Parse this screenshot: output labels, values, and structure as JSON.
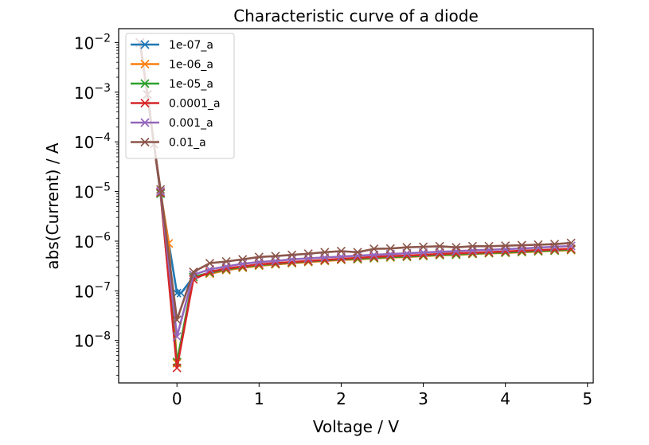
{
  "chart_data": {
    "type": "line",
    "title": "Characteristic curve of a diode",
    "xlabel": "Voltage / V",
    "ylabel": "abs(Current) / A",
    "xscale": "linear",
    "yscale": "log",
    "xlim": [
      -0.71,
      5.07
    ],
    "ylim": [
      1.4e-09,
      0.019
    ],
    "xticks": [
      0,
      1,
      2,
      3,
      4,
      5
    ],
    "xtick_labels": [
      "0",
      "1",
      "2",
      "3",
      "4",
      "5"
    ],
    "yticks": [
      1e-08,
      1e-07,
      1e-06,
      1e-05,
      0.0001,
      0.001,
      0.01
    ],
    "ytick_labels": [
      {
        "base": "10",
        "exp": "−8"
      },
      {
        "base": "10",
        "exp": "−7"
      },
      {
        "base": "10",
        "exp": "−6"
      },
      {
        "base": "10",
        "exp": "−5"
      },
      {
        "base": "10",
        "exp": "−4"
      },
      {
        "base": "10",
        "exp": "−3"
      },
      {
        "base": "10",
        "exp": "−2"
      }
    ],
    "grid": false,
    "legend_position": "top-left",
    "marker": "x",
    "forward_x": [
      0.2,
      0.4,
      0.6,
      0.8,
      1.0,
      1.2,
      1.4,
      1.6,
      1.8,
      2.0,
      2.2,
      2.4,
      2.6,
      2.8,
      3.0,
      3.2,
      3.4,
      3.6,
      3.8,
      4.0,
      4.2,
      4.4,
      4.6,
      4.8
    ],
    "series": [
      {
        "name": "1e-07_a",
        "color": "#1f77b4",
        "x": [
          -0.45,
          -0.36,
          -0.28,
          -0.2,
          0.0,
          0.05,
          0.2,
          0.4,
          0.6,
          0.8,
          1.0,
          1.2,
          1.4,
          1.6,
          1.8,
          2.0,
          2.2,
          2.4,
          2.6,
          2.8,
          3.0,
          3.2,
          3.4,
          3.6,
          3.8,
          4.0,
          4.2,
          4.4,
          4.6,
          4.8
        ],
        "y": [
          0.01,
          0.0009,
          9e-05,
          9.5e-06,
          9e-08,
          9e-08,
          1.9e-07,
          2.3e-07,
          2.7e-07,
          3e-07,
          3.3e-07,
          3.5e-07,
          3.7e-07,
          3.9e-07,
          4.1e-07,
          4.3e-07,
          4.4e-07,
          4.6e-07,
          4.8e-07,
          4.9e-07,
          5.1e-07,
          5.3e-07,
          5.4e-07,
          5.6e-07,
          5.8e-07,
          5.9e-07,
          6.1e-07,
          6.3e-07,
          6.5e-07,
          6.7e-07
        ]
      },
      {
        "name": "1e-06_a",
        "color": "#ff7f0e",
        "x": [
          -0.45,
          -0.36,
          -0.28,
          -0.2,
          -0.1,
          0.0,
          0.2,
          0.4,
          0.6,
          0.8,
          1.0,
          1.2,
          1.4,
          1.6,
          1.8,
          2.0,
          2.2,
          2.4,
          2.6,
          2.8,
          3.0,
          3.2,
          3.4,
          3.6,
          3.8,
          4.0,
          4.2,
          4.4,
          4.6,
          4.8
        ],
        "y": [
          0.01,
          0.0009,
          9e-05,
          9.5e-06,
          9e-07,
          3.5e-09,
          1.9e-07,
          2.2e-07,
          2.6e-07,
          2.9e-07,
          3.2e-07,
          3.4e-07,
          3.6e-07,
          3.8e-07,
          4e-07,
          4.2e-07,
          4.3e-07,
          4.5e-07,
          4.7e-07,
          4.8e-07,
          5e-07,
          5.2e-07,
          5.3e-07,
          5.5e-07,
          5.7e-07,
          5.8e-07,
          6e-07,
          6.2e-07,
          6.4e-07,
          6.6e-07
        ]
      },
      {
        "name": "1e-05_a",
        "color": "#2ca02c",
        "x": [
          -0.45,
          -0.36,
          -0.28,
          -0.2,
          0.0,
          0.2,
          0.4,
          0.6,
          0.8,
          1.0,
          1.2,
          1.4,
          1.6,
          1.8,
          2.0,
          2.2,
          2.4,
          2.6,
          2.8,
          3.0,
          3.2,
          3.4,
          3.6,
          3.8,
          4.0,
          4.2,
          4.4,
          4.6,
          4.8
        ],
        "y": [
          0.01,
          0.0009,
          9e-05,
          9e-06,
          3.7e-09,
          1.9e-07,
          2.3e-07,
          2.7e-07,
          3e-07,
          3.3e-07,
          3.5e-07,
          3.7e-07,
          3.9e-07,
          4.1e-07,
          4.3e-07,
          4.4e-07,
          4.6e-07,
          4.8e-07,
          4.9e-07,
          5.1e-07,
          5.3e-07,
          5.4e-07,
          5.6e-07,
          5.8e-07,
          5.9e-07,
          6.1e-07,
          6.3e-07,
          6.5e-07,
          6.8e-07
        ]
      },
      {
        "name": "0.0001_a",
        "color": "#d62728",
        "x": [
          -0.45,
          -0.36,
          -0.28,
          -0.2,
          0.0,
          0.2,
          0.4,
          0.6,
          0.8,
          1.0,
          1.2,
          1.4,
          1.6,
          1.8,
          2.0,
          2.2,
          2.4,
          2.6,
          2.8,
          3.0,
          3.2,
          3.4,
          3.6,
          3.8,
          4.0,
          4.2,
          4.4,
          4.6,
          4.8
        ],
        "y": [
          0.01,
          0.0009,
          9e-05,
          9.5e-06,
          2.8e-09,
          1.7e-07,
          2.4e-07,
          2.8e-07,
          3.1e-07,
          3.4e-07,
          3.6e-07,
          3.8e-07,
          4e-07,
          4.2e-07,
          4.4e-07,
          4.6e-07,
          4.8e-07,
          5e-07,
          5.1e-07,
          5.3e-07,
          5.5e-07,
          5.7e-07,
          5.8e-07,
          6e-07,
          6.2e-07,
          6.4e-07,
          6.6e-07,
          6.8e-07,
          7e-07
        ]
      },
      {
        "name": "0.001_a",
        "color": "#9467bd",
        "x": [
          -0.45,
          -0.36,
          -0.28,
          -0.2,
          0.0,
          0.2,
          0.4,
          0.6,
          0.8,
          1.0,
          1.2,
          1.4,
          1.6,
          1.8,
          2.0,
          2.2,
          2.4,
          2.6,
          2.8,
          3.0,
          3.2,
          3.4,
          3.6,
          3.8,
          4.0,
          4.2,
          4.4,
          4.6,
          4.8
        ],
        "y": [
          0.01,
          0.0009,
          9e-05,
          1e-05,
          1.2e-08,
          2.1e-07,
          2.7e-07,
          3.1e-07,
          3.5e-07,
          3.8e-07,
          4e-07,
          4.3e-07,
          4.5e-07,
          4.7e-07,
          4.9e-07,
          5.1e-07,
          5.3e-07,
          5.5e-07,
          5.7e-07,
          5.9e-07,
          6.1e-07,
          6.3e-07,
          6.5e-07,
          6.7e-07,
          6.9e-07,
          7.1e-07,
          7.4e-07,
          7.7e-07,
          8e-07
        ]
      },
      {
        "name": "0.01_a",
        "color": "#8c564b",
        "x": [
          -0.45,
          -0.36,
          -0.28,
          -0.2,
          0.0,
          0.2,
          0.4,
          0.6,
          0.8,
          1.0,
          1.2,
          1.4,
          1.6,
          1.8,
          2.0,
          2.2,
          2.4,
          2.6,
          2.8,
          3.0,
          3.2,
          3.4,
          3.6,
          3.8,
          4.0,
          4.2,
          4.4,
          4.6,
          4.8
        ],
        "y": [
          0.01,
          0.0009,
          9e-05,
          1.1e-05,
          2.6e-08,
          2.4e-07,
          3.6e-07,
          3.9e-07,
          4.3e-07,
          4.8e-07,
          5e-07,
          5.3e-07,
          5.6e-07,
          6e-07,
          6.3e-07,
          6e-07,
          7e-07,
          7.1e-07,
          7.5e-07,
          7.7e-07,
          7.9e-07,
          7.5e-07,
          7.9e-07,
          7.9e-07,
          8.1e-07,
          8.3e-07,
          8.5e-07,
          8.7e-07,
          9.2e-07
        ]
      }
    ]
  }
}
